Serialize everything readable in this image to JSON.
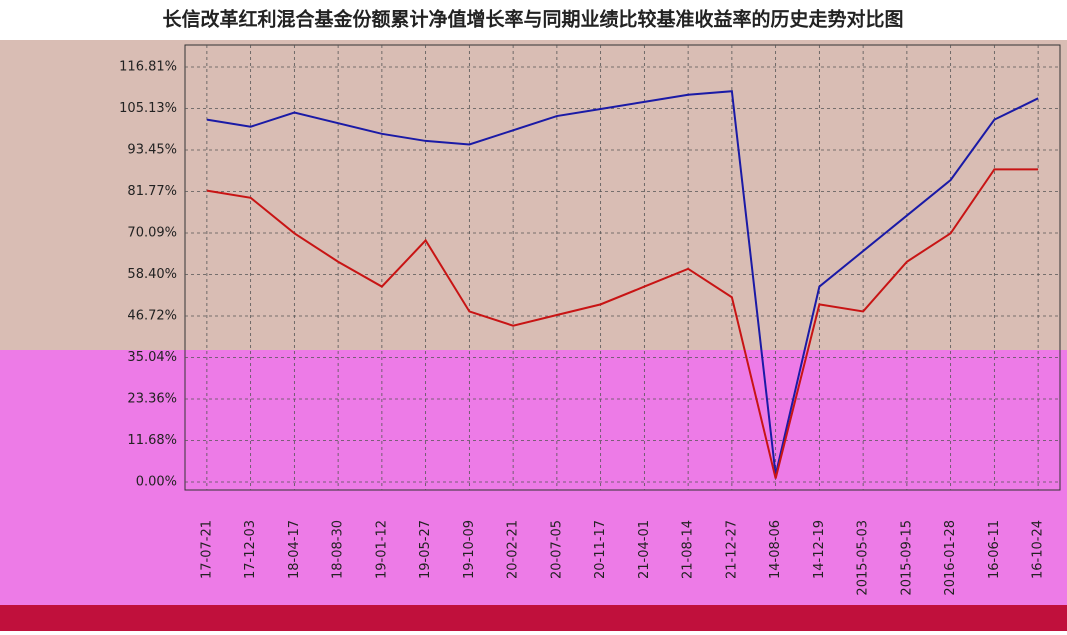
{
  "chart_data": {
    "type": "line",
    "title": "长信改革红利混合基金份额累计净值增长率与同期业绩比较基准收益率的历史走势对比图",
    "categories": [
      "17-07-21",
      "17-12-03",
      "18-04-17",
      "18-08-30",
      "19-01-12",
      "19-05-27",
      "19-10-09",
      "20-02-21",
      "20-07-05",
      "20-11-17",
      "21-04-01",
      "21-08-14",
      "21-12-27",
      "14-08-06",
      "14-12-19",
      "2015-05-03",
      "2015-09-15",
      "2016-01-28",
      "16-06-11",
      "16-10-24"
    ],
    "series": [
      {
        "color": "#1a1aa6",
        "values": [
          102,
          100,
          104,
          101,
          98,
          96,
          95,
          99,
          103,
          105,
          107,
          109,
          110,
          2,
          55,
          65,
          75,
          85,
          102,
          108
        ]
      },
      {
        "color": "#c81414",
        "values": [
          82,
          80,
          70,
          62,
          55,
          68,
          48,
          44,
          47,
          50,
          55,
          60,
          52,
          1,
          50,
          48,
          62,
          70,
          88,
          88
        ]
      }
    ],
    "ylim": [
      0,
      116.81
    ],
    "yticks": [
      {
        "value": 0,
        "label": "0.00%"
      },
      {
        "value": 11.68,
        "label": "11.68%"
      },
      {
        "value": 23.36,
        "label": "23.36%"
      },
      {
        "value": 35.04,
        "label": "35.04%"
      },
      {
        "value": 46.72,
        "label": "46.72%"
      },
      {
        "value": 58.4,
        "label": "58.40%"
      },
      {
        "value": 70.09,
        "label": "70.09%"
      },
      {
        "value": 81.77,
        "label": "81.77%"
      },
      {
        "value": 93.45,
        "label": "93.45%"
      },
      {
        "value": 105.13,
        "label": "105.13%"
      },
      {
        "value": 116.81,
        "label": "116.81%"
      }
    ],
    "grid": true
  }
}
